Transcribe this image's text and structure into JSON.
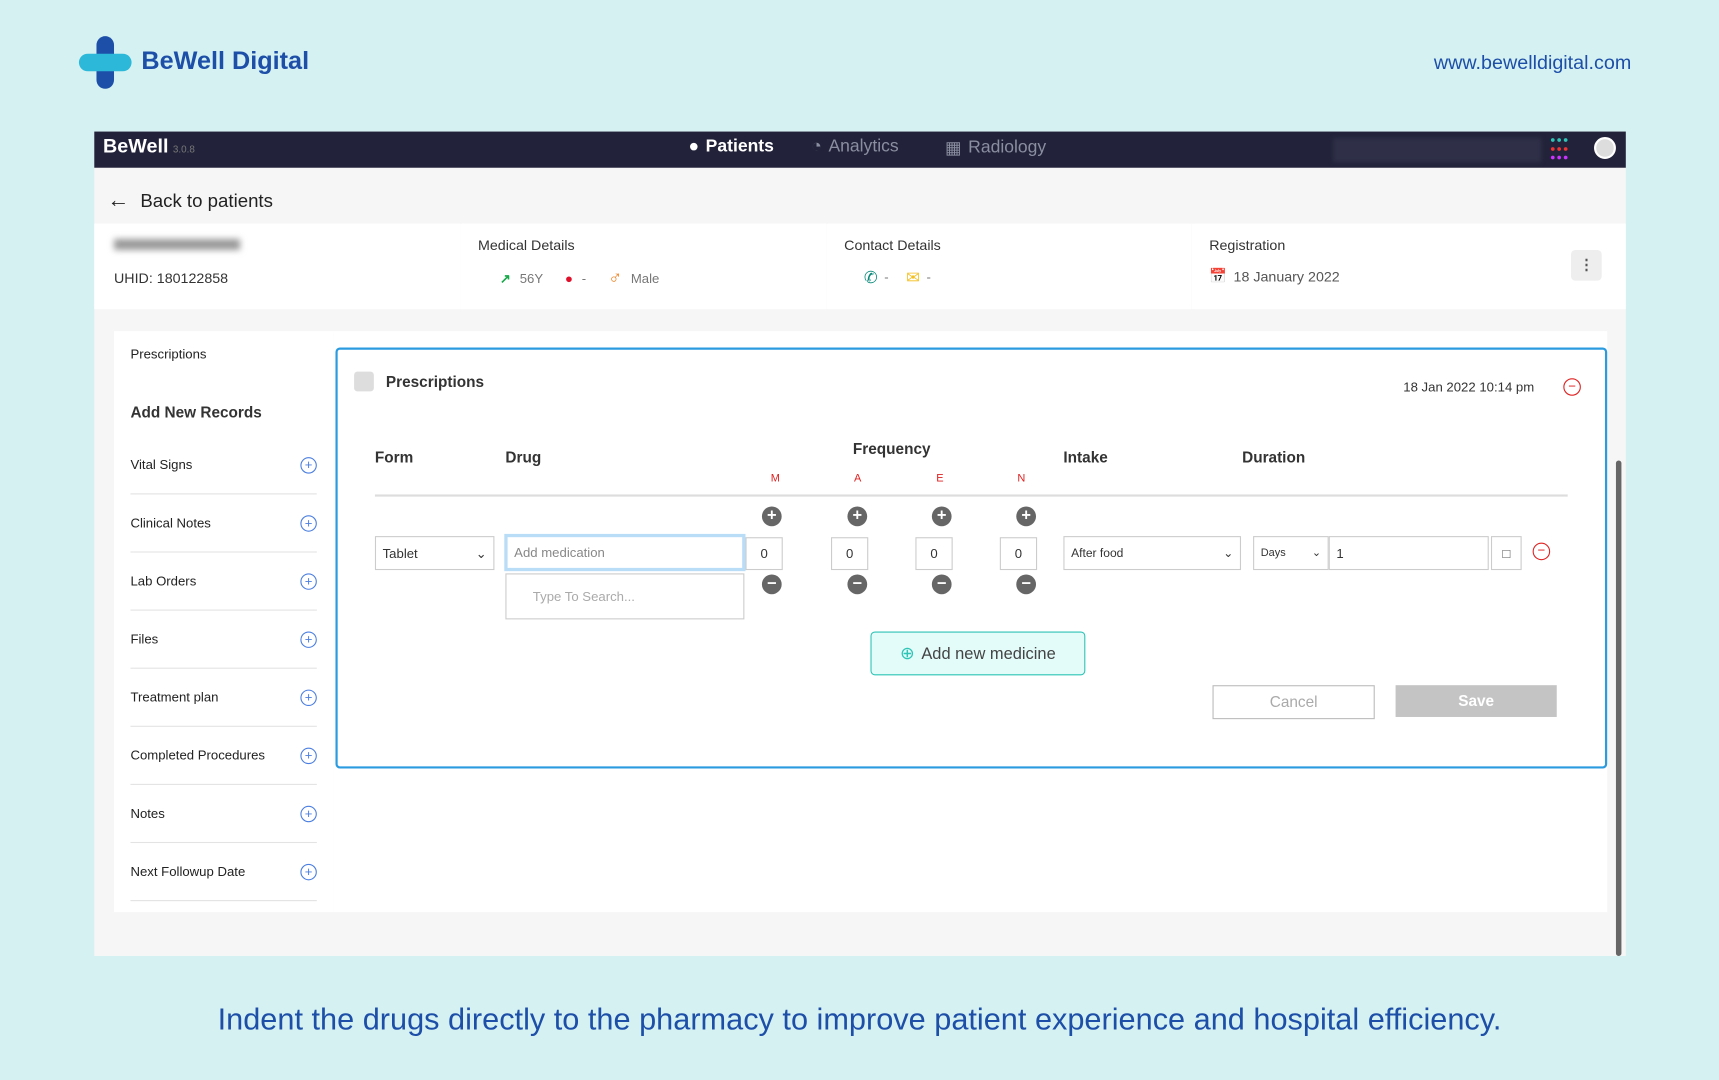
{
  "brand": {
    "name": "BeWell Digital",
    "website": "www.bewelldigital.com"
  },
  "app": {
    "title": "BeWell",
    "version": "3.0.8",
    "nav": [
      {
        "label": "Patients",
        "icon": "user-icon",
        "active": true
      },
      {
        "label": "Analytics",
        "icon": "pie-chart-icon"
      },
      {
        "label": "Radiology",
        "icon": "radiology-icon"
      }
    ],
    "back_label": "Back to patients"
  },
  "patient": {
    "uhid": "UHID: 180122858",
    "medical": {
      "title": "Medical Details",
      "age": "56Y",
      "blood": "-",
      "gender": "Male"
    },
    "contact": {
      "title": "Contact Details",
      "phone": "-",
      "email": "-"
    },
    "registration": {
      "title": "Registration",
      "date": "18 January 2022"
    }
  },
  "sidebar": {
    "top": "Prescriptions",
    "heading": "Add New Records",
    "items": [
      "Vital Signs",
      "Clinical Notes",
      "Lab Orders",
      "Files",
      "Treatment plan",
      "Completed Procedures",
      "Notes",
      "Next Followup Date"
    ]
  },
  "prescription": {
    "title": "Prescriptions",
    "timestamp": "18 Jan 2022 10:14 pm",
    "headers": {
      "form": "Form",
      "drug": "Drug",
      "frequency": "Frequency",
      "intake": "Intake",
      "duration": "Duration"
    },
    "freq_labels": [
      "M",
      "A",
      "E",
      "N"
    ],
    "row": {
      "form": "Tablet",
      "drug_placeholder": "Add medication",
      "search_placeholder": "Type To Search...",
      "freq": [
        "0",
        "0",
        "0",
        "0"
      ],
      "intake": "After food",
      "duration_unit": "Days",
      "duration": "1"
    },
    "add_label": "Add new medicine",
    "cancel": "Cancel",
    "save": "Save"
  },
  "caption": "Indent the drugs directly to the pharmacy to improve patient experience and hospital efficiency.",
  "colors": {
    "accent": "#2b9be0",
    "brand": "#1d4fa8",
    "topbar": "#22233a",
    "danger": "#e02020",
    "teal": "#2ec4b6"
  }
}
